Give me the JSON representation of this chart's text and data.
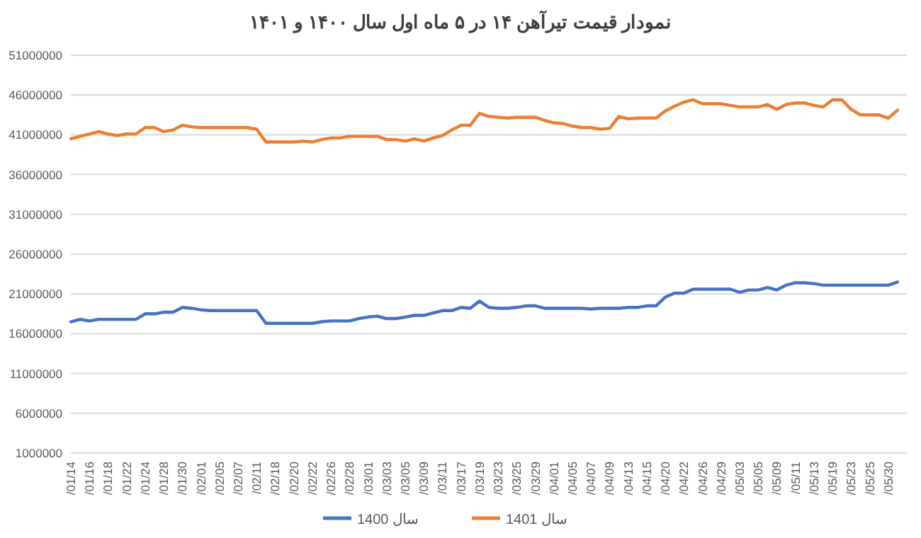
{
  "chart_data": {
    "type": "line",
    "title": "نمودار قیمت تیرآهن ۱۴ در ۵ ماه اول سال ۱۴۰۰ و ۱۴۰۱",
    "categories": [
      "/01/14",
      null,
      "/01/16",
      null,
      "/01/18",
      null,
      "/01/22",
      null,
      "/01/24",
      null,
      "/01/28",
      null,
      "/01/30",
      null,
      "/02/01",
      null,
      "/02/05",
      null,
      "/02/07",
      null,
      "/02/11",
      null,
      "/02/18",
      null,
      "/02/20",
      null,
      "/02/22",
      null,
      "/02/26",
      null,
      "/02/28",
      null,
      "/03/01",
      null,
      "/03/03",
      null,
      "/03/05",
      null,
      "/03/09",
      null,
      "/03/11",
      null,
      "/03/17",
      null,
      "/03/19",
      null,
      "/03/23",
      null,
      "/03/25",
      null,
      "/03/29",
      null,
      "/04/01",
      null,
      "/04/05",
      null,
      "/04/07",
      null,
      "/04/09",
      null,
      "/04/13",
      null,
      "/04/15",
      null,
      "/04/20",
      null,
      "/04/22",
      null,
      "/04/26",
      null,
      "/04/29",
      null,
      "/05/03",
      null,
      "/05/05",
      null,
      "/05/09",
      null,
      "/05/11",
      null,
      "/05/13",
      null,
      "/05/19",
      null,
      "/05/23",
      null,
      "/05/25",
      null,
      "/05/30",
      null
    ],
    "series": [
      {
        "name": "سال 1400",
        "color": "#4472c4",
        "values": [
          17500000,
          17800000,
          17600000,
          17800000,
          17800000,
          17800000,
          17800000,
          17800000,
          18500000,
          18500000,
          18700000,
          18700000,
          19300000,
          19200000,
          19000000,
          18900000,
          18900000,
          18900000,
          18900000,
          18900000,
          18900000,
          17300000,
          17300000,
          17300000,
          17300000,
          17300000,
          17300000,
          17500000,
          17600000,
          17600000,
          17600000,
          17900000,
          18100000,
          18200000,
          17900000,
          17900000,
          18100000,
          18300000,
          18300000,
          18600000,
          18900000,
          18900000,
          19300000,
          19200000,
          20100000,
          19300000,
          19200000,
          19200000,
          19300000,
          19500000,
          19500000,
          19200000,
          19200000,
          19200000,
          19200000,
          19200000,
          19100000,
          19200000,
          19200000,
          19200000,
          19300000,
          19300000,
          19500000,
          19500000,
          20600000,
          21100000,
          21100000,
          21600000,
          21600000,
          21600000,
          21600000,
          21600000,
          21200000,
          21500000,
          21500000,
          21800000,
          21500000,
          22100000,
          22400000,
          22400000,
          22300000,
          22100000,
          22100000,
          22100000,
          22100000,
          22100000,
          22100000,
          22100000,
          22100000,
          22500000
        ]
      },
      {
        "name": "سال 1401",
        "color": "#ed7d31",
        "values": [
          40500000,
          40800000,
          41100000,
          41400000,
          41100000,
          40900000,
          41100000,
          41100000,
          41900000,
          41900000,
          41400000,
          41600000,
          42200000,
          42000000,
          41900000,
          41900000,
          41900000,
          41900000,
          41900000,
          41900000,
          41700000,
          40100000,
          40100000,
          40100000,
          40100000,
          40200000,
          40100000,
          40400000,
          40600000,
          40600000,
          40800000,
          40800000,
          40800000,
          40800000,
          40400000,
          40400000,
          40200000,
          40500000,
          40200000,
          40600000,
          40900000,
          41600000,
          42200000,
          42200000,
          43700000,
          43300000,
          43200000,
          43100000,
          43200000,
          43200000,
          43200000,
          42800000,
          42500000,
          42400000,
          42100000,
          41900000,
          41900000,
          41700000,
          41800000,
          43300000,
          43000000,
          43100000,
          43100000,
          43100000,
          44000000,
          44600000,
          45100000,
          45400000,
          44900000,
          44900000,
          44900000,
          44700000,
          44500000,
          44500000,
          44500000,
          44800000,
          44200000,
          44800000,
          45000000,
          45000000,
          44700000,
          44500000,
          45400000,
          45400000,
          44200000,
          43500000,
          43500000,
          43500000,
          43100000,
          44100000
        ]
      }
    ],
    "ylim": [
      1000000,
      51000000
    ],
    "yticks": [
      1000000,
      6000000,
      11000000,
      16000000,
      21000000,
      26000000,
      31000000,
      36000000,
      41000000,
      46000000,
      51000000
    ],
    "grid": "y",
    "legend": "bottom"
  }
}
